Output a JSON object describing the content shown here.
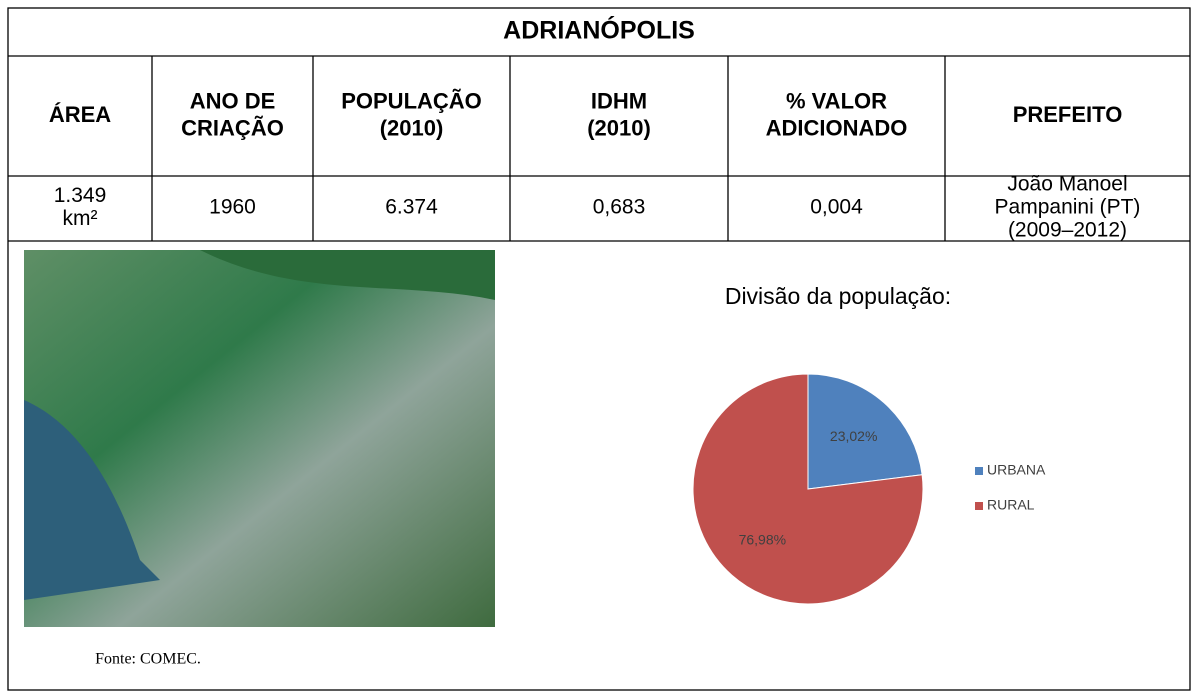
{
  "title": "ADRIANÓPOLIS",
  "table": {
    "headers": [
      [
        "ÁREA"
      ],
      [
        "ANO DE",
        "CRIAÇÃO"
      ],
      [
        "POPULAÇÃO",
        "(2010)"
      ],
      [
        "IDHM",
        "(2010)"
      ],
      [
        "% VALOR",
        "ADICIONADO"
      ],
      [
        "PREFEITO"
      ]
    ],
    "row": [
      [
        "1.349",
        "km²"
      ],
      [
        "1960"
      ],
      [
        "6.374"
      ],
      [
        "0,683"
      ],
      [
        "0,004"
      ],
      [
        "João Manoel",
        "Pampanini (PT)",
        "(2009–2012)"
      ]
    ]
  },
  "photo_caption": "Fonte: COMEC.",
  "chart_data": {
    "type": "pie",
    "title": "Divisão da população:",
    "categories": [
      "URBANA",
      "RURAL"
    ],
    "values": [
      23.02,
      76.98
    ],
    "value_labels": [
      "23,02%",
      "76,98%"
    ],
    "colors": [
      "#4f81bd",
      "#c0504d"
    ],
    "legend": "right"
  }
}
